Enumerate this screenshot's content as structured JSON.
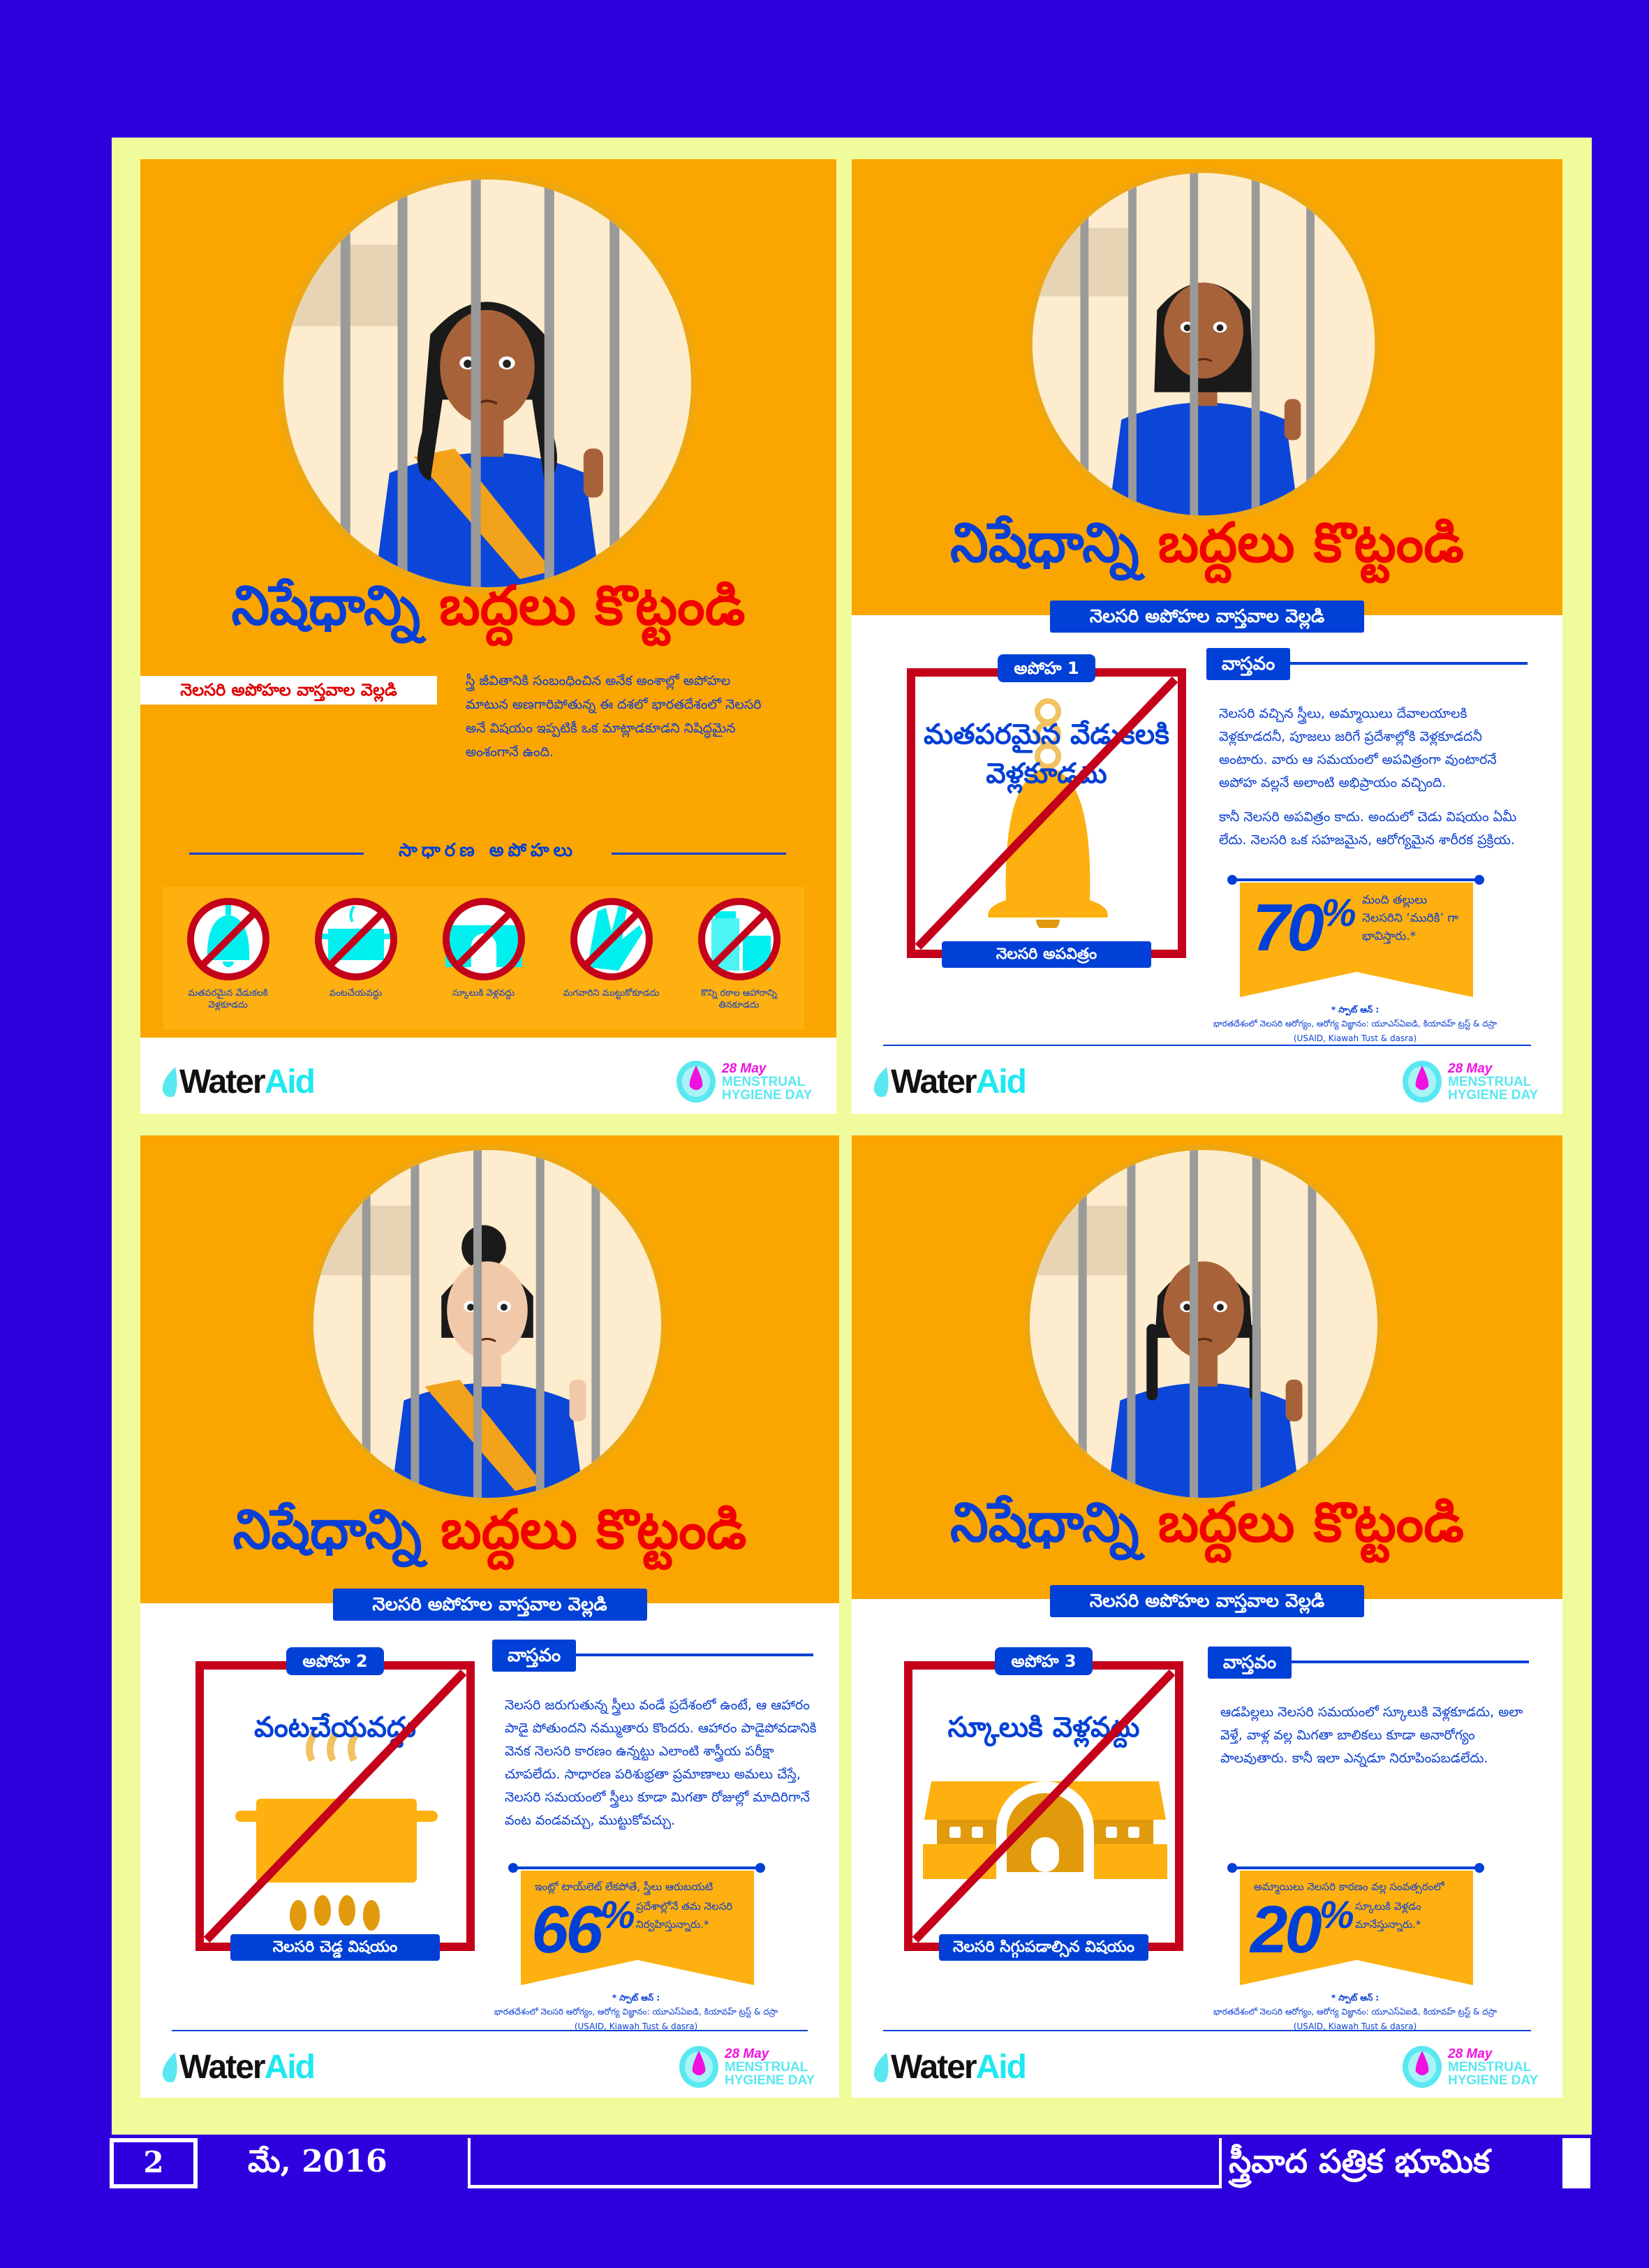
{
  "colors": {
    "page_bg": "#2e00de",
    "frame": "#f0fb9c",
    "orange": "#fba500",
    "blue": "#0040d6",
    "red": "#c4001a",
    "title_red": "#f00000",
    "cyan": "#00f0f0",
    "ribbon": "#fdb00f"
  },
  "panels": [
    {
      "title_part1": "నిషేధాన్ని",
      "title_part2": "బద్దలు కొట్టండి",
      "banner": "నెలసరి అపోహల వాస్తవాల వెల్లడి",
      "intro": "స్త్రీ జీవితానికి సంబంధించిన అనేక అంశాల్లో అపోహల మాటున అణగారిపోతున్న ఈ దశలో భారతదేశంలో నెలసరి అనే విషయం ఇప్పటికీ ఒక మాట్లాడకూడని నిషిద్ధమైన అంశంగానే ఉంది.",
      "common_myths_heading": "సాధారణ అపోహలు",
      "common_myths": [
        {
          "label": "మతపరమైన వేడుకలకి వెళ్లకూడదు",
          "icon": "bell-icon"
        },
        {
          "label": "వంటచేయవద్దు",
          "icon": "cooking-pot-icon"
        },
        {
          "label": "స్కూలుకి వెళ్లవద్దు",
          "icon": "school-icon"
        },
        {
          "label": "మగవారిని ముట్టుకోకూడదు",
          "icon": "hand-icon"
        },
        {
          "label": "కొన్ని రకాల ఆహారాన్ని తినకూడదు",
          "icon": "food-jar-icon"
        }
      ],
      "logos": {
        "wateraid_1": "Water",
        "wateraid_2": "Aid",
        "mhd_date": "28 May",
        "mhd_1": "MENSTRUAL",
        "mhd_2": "HYGIENE DAY"
      }
    },
    {
      "title_part1": "నిషేధాన్ని",
      "title_part2": "బద్దలు కొట్టండి",
      "banner": "నెలసరి అపోహల వాస్తవాల వెల్లడి",
      "myth": {
        "badge": "అపోహ 1",
        "text": "మతపరమైన వేడుకలకి వెళ్లకూడదు",
        "caption": "నెలసరి అపవిత్రం",
        "icon": "bell-icon"
      },
      "fact": {
        "heading": "వాస్తవం",
        "paragraphs": [
          "నెలసరి వచ్చిన స్త్రీలు, అమ్మాయిలు దేవాలయాలకి వెళ్లకూడదనీ, పూజలు జరిగే ప్రదేశాల్లోకి వెళ్లకూడదనీ అంటారు. వారు ఆ సమయంలో అపవిత్రంగా వుంటారనే అపోహ వల్లనే అలాంటి అభిప్రాయం వచ్చింది.",
          "కానీ నెలసరి అపవిత్రం కాదు. అందులో చెడు విషయం ఏమీ లేదు. నెలసరి ఒక సహజమైన, ఆరోగ్యమైన శారీరక ప్రక్రియ."
        ]
      },
      "stat": {
        "value": "70",
        "unit": "%",
        "text_top": "",
        "text_side": "మంది తల్లులు నెలసరిని ‘మురికి’ గా భావిస్తారు.*"
      },
      "source": {
        "label": "* స్పాట్ ఆన్ :",
        "text": "భారతదేశంలో నెలసరి ఆరోగ్యం, ఆరోగ్య విజ్ఞానం: యూఎస్ఏఐడి, కియావహ్ ట్రస్ట్ & దస్రా (USAID, Kiawah Tust & dasra)"
      },
      "logos": {
        "wateraid_1": "Water",
        "wateraid_2": "Aid",
        "mhd_date": "28 May",
        "mhd_1": "MENSTRUAL",
        "mhd_2": "HYGIENE DAY"
      }
    },
    {
      "title_part1": "నిషేధాన్ని",
      "title_part2": "బద్దలు కొట్టండి",
      "banner": "నెలసరి అపోహల వాస్తవాల వెల్లడి",
      "myth": {
        "badge": "అపోహ 2",
        "text": "వంటచేయవద్దు",
        "caption": "నెలసరి చెడ్డ విషయం",
        "icon": "cooking-pot-icon"
      },
      "fact": {
        "heading": "వాస్తవం",
        "paragraphs": [
          "నెలసరి జరుగుతున్న స్త్రీలు వండే ప్రదేశంలో ఉంటే, ఆ ఆహారం పాడై పోతుందని నమ్ముతారు కొందరు. ఆహారం పాడైపోవడానికి వెనక నెలసరి కారణం ఉన్నట్టు ఎలాంటి శాస్త్రీయ పరీక్షా చూపలేదు. సాధారణ పరిశుభ్రతా ప్రమాణాలు అమలు చేస్తే, నెలసరి సమయంలో స్త్రీలు కూడా మిగతా రోజుల్లో మాదిరిగానే వంట వండవచ్చు, ముట్టుకోవచ్చు."
        ]
      },
      "stat": {
        "value": "66",
        "unit": "%",
        "text_top": "ఇంట్లో టాయ్‌లెట్ లేకపోతే, స్త్రీలు ఆరుబయటి",
        "text_side": "ప్రదేశాల్లోనే తమ నెలసరి నిర్వహిస్తున్నారు.*"
      },
      "source": {
        "label": "* స్పాట్ ఆన్ :",
        "text": "భారతదేశంలో నెలసరి ఆరోగ్యం, ఆరోగ్య విజ్ఞానం: యూఎస్ఏఐడి, కియావహ్ ట్రస్ట్ & దస్రా (USAID, Kiawah Tust & dasra)"
      },
      "logos": {
        "wateraid_1": "Water",
        "wateraid_2": "Aid",
        "mhd_date": "28 May",
        "mhd_1": "MENSTRUAL",
        "mhd_2": "HYGIENE DAY"
      }
    },
    {
      "title_part1": "నిషేధాన్ని",
      "title_part2": "బద్దలు కొట్టండి",
      "banner": "నెలసరి అపోహల వాస్తవాల వెల్లడి",
      "myth": {
        "badge": "అపోహ 3",
        "text": "స్కూలుకి వెళ్లవద్దు",
        "caption": "నెలసరి సిగ్గుపడాల్సిన విషయం",
        "icon": "school-icon"
      },
      "fact": {
        "heading": "వాస్తవం",
        "paragraphs": [
          "ఆడపిల్లలు నెలసరి సమయంలో స్కూలుకి వెళ్లకూడదు, అలా వెళ్తే, వాళ్ల వల్ల మిగతా బాలికలు కూడా అనారోగ్యం పాలవుతారు. కానీ ఇలా ఎన్నడూ నిరూపింపబడలేదు."
        ]
      },
      "stat": {
        "value": "20",
        "unit": "%",
        "text_top": "అమ్మాయిలు నెలసరి కారణం వల్ల సంవత్సరంలో",
        "text_side": "స్కూలుకి వెళ్లడం మానేస్తున్నారు.*"
      },
      "source": {
        "label": "* స్పాట్ ఆన్ :",
        "text": "భారతదేశంలో నెలసరి ఆరోగ్యం, ఆరోగ్య విజ్ఞానం: యూఎస్ఏఐడి, కియావహ్ ట్రస్ట్ & దస్రా (USAID, Kiawah Tust & dasra)"
      },
      "logos": {
        "wateraid_1": "Water",
        "wateraid_2": "Aid",
        "mhd_date": "28 May",
        "mhd_1": "MENSTRUAL",
        "mhd_2": "HYGIENE DAY"
      }
    }
  ],
  "footer": {
    "page_number": "2",
    "date": "మే, 2016",
    "magazine": "స్త్రీవాద పత్రిక భూమిక"
  }
}
